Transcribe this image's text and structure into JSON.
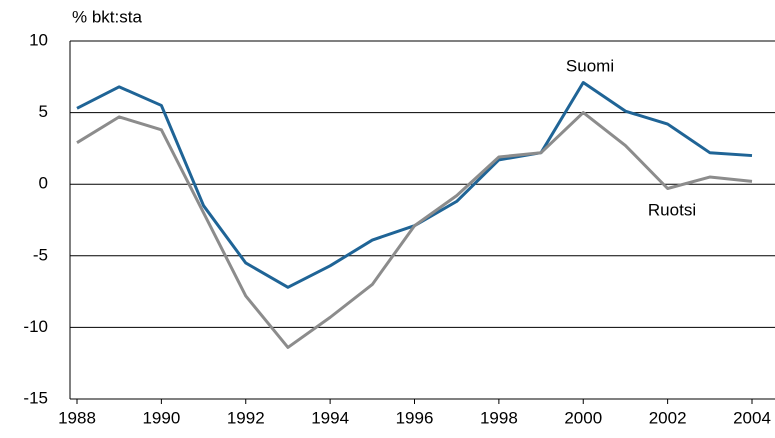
{
  "chart_data": {
    "type": "line",
    "y_label": "% bkt:sta",
    "x": [
      1988,
      1989,
      1990,
      1991,
      1992,
      1993,
      1994,
      1995,
      1996,
      1997,
      1998,
      1999,
      2000,
      2001,
      2002,
      2003,
      2004
    ],
    "series": [
      {
        "name": "Suomi",
        "color": "#1f6496",
        "values": [
          5.3,
          6.8,
          5.5,
          -1.5,
          -5.5,
          -7.2,
          -5.7,
          -3.9,
          -2.9,
          -1.2,
          1.7,
          2.2,
          7.1,
          5.1,
          4.2,
          2.2,
          2.0
        ]
      },
      {
        "name": "Ruotsi",
        "color": "#8c8c8c",
        "values": [
          2.9,
          4.7,
          3.8,
          -2.0,
          -7.8,
          -11.4,
          -9.3,
          -7.0,
          -2.9,
          -0.8,
          1.9,
          2.2,
          5.0,
          2.7,
          -0.3,
          0.5,
          0.2
        ]
      }
    ],
    "xlim": [
      1988,
      2004
    ],
    "xticks": [
      1988,
      1990,
      1992,
      1994,
      1996,
      1998,
      2000,
      2002,
      2004
    ],
    "ylim": [
      -15,
      10
    ],
    "yticks": [
      -15,
      -10,
      -5,
      0,
      5,
      10
    ],
    "grid": true
  }
}
